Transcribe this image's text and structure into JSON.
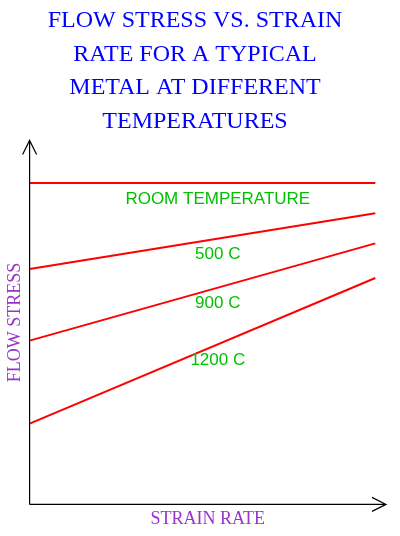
{
  "chart_data": {
    "type": "line",
    "title": [
      "FLOW STRESS VS. STRAIN",
      "RATE FOR A TYPICAL",
      "METAL AT DIFFERENT",
      "TEMPERATURES"
    ],
    "x_label": "STRAIN RATE",
    "y_label": "FLOW STRESS",
    "x": [
      0,
      9.7
    ],
    "series": [
      {
        "name": "ROOM TEMPERATURE",
        "color": "#ff0000",
        "values": [
          8.83,
          8.83
        ]
      },
      {
        "name": "500 C",
        "color": "#ff0000",
        "values": [
          6.47,
          8.0
        ]
      },
      {
        "name": "900 C",
        "color": "#ff0000",
        "values": [
          4.5,
          7.17
        ]
      },
      {
        "name": "1200 C",
        "color": "#ff0000",
        "values": [
          2.22,
          6.22
        ]
      }
    ],
    "xlim": [
      0,
      10
    ],
    "ylim": [
      0,
      10
    ],
    "grid": false,
    "tick_labels": false
  }
}
